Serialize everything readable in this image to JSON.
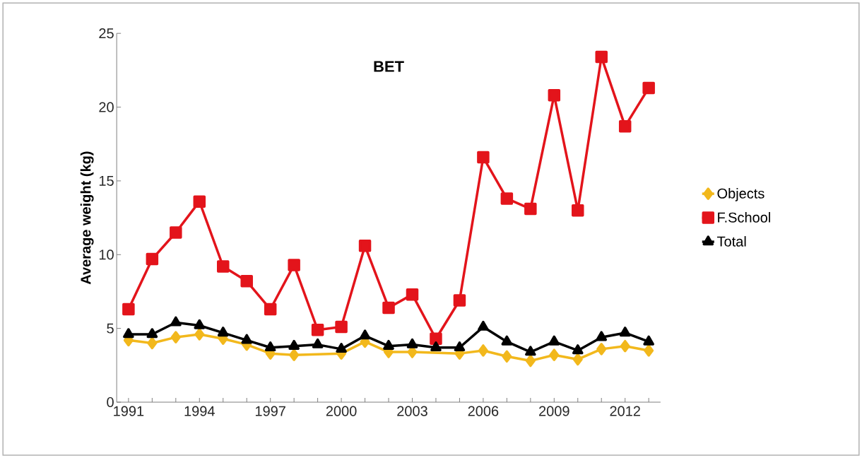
{
  "chart_data": {
    "type": "line",
    "title": "BET",
    "ylabel": "Average weight (kg)",
    "categories": [
      "1991",
      null,
      null,
      "1994",
      null,
      null,
      "1997",
      null,
      null,
      "2000",
      null,
      null,
      "2003",
      null,
      null,
      "2006",
      null,
      null,
      "2009",
      null,
      null,
      "2012",
      null
    ],
    "series": [
      {
        "name": "Objects",
        "color": "#f2b81c",
        "marker": "diamond",
        "values": [
          4.2,
          4.0,
          4.4,
          4.6,
          4.3,
          3.9,
          3.3,
          3.2,
          null,
          3.3,
          4.1,
          3.4,
          3.4,
          null,
          3.3,
          3.5,
          3.1,
          2.8,
          3.2,
          2.9,
          3.6,
          3.8,
          3.5
        ]
      },
      {
        "name": "F.School",
        "color": "#e3141b",
        "marker": "square",
        "values": [
          6.3,
          9.7,
          11.5,
          13.6,
          9.2,
          8.2,
          6.3,
          9.3,
          4.9,
          5.1,
          10.6,
          6.4,
          7.3,
          4.3,
          6.9,
          16.6,
          13.8,
          13.1,
          20.8,
          13.0,
          23.4,
          18.7,
          21.3
        ]
      },
      {
        "name": "Total",
        "color": "#000000",
        "marker": "triangle",
        "values": [
          4.6,
          4.6,
          5.4,
          5.2,
          4.7,
          4.2,
          3.7,
          3.8,
          3.9,
          3.6,
          4.5,
          3.8,
          3.9,
          3.7,
          3.7,
          5.1,
          4.1,
          3.4,
          4.1,
          3.5,
          4.4,
          4.7,
          4.1
        ]
      }
    ],
    "ylim": [
      0,
      25
    ],
    "yticks": [
      0,
      5,
      10,
      15,
      20,
      25
    ],
    "grid": false,
    "legend": "right",
    "line_style": "solid"
  }
}
